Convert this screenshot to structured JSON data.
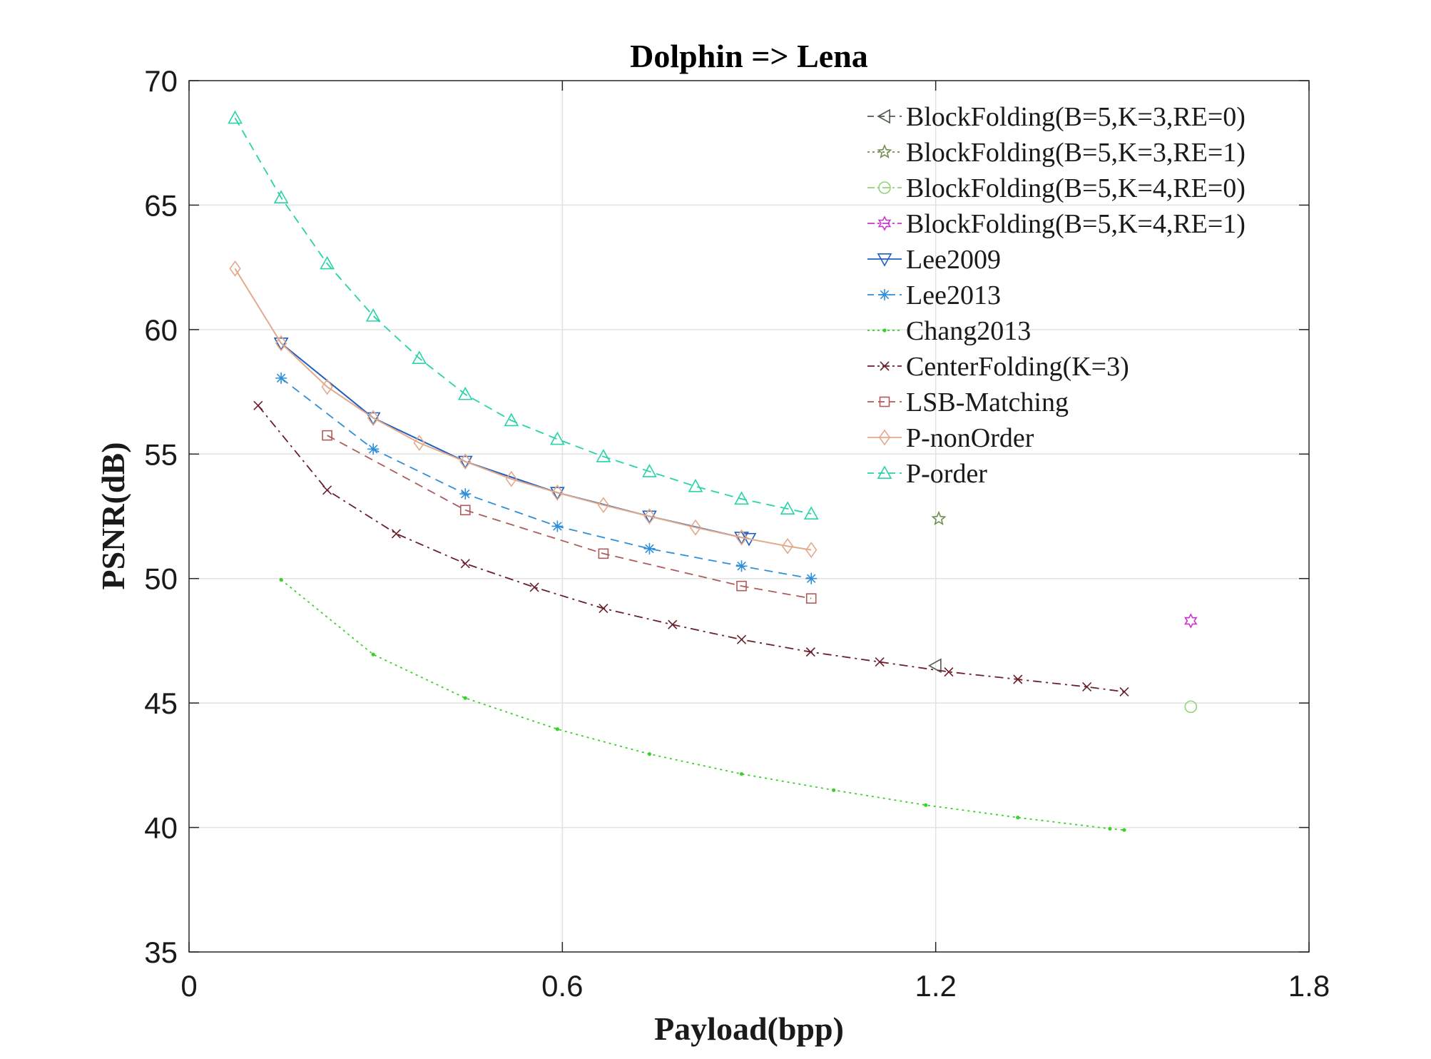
{
  "chart_data": {
    "type": "line",
    "title": "Dolphin => Lena",
    "xlabel": "Payload(bpp)",
    "ylabel": "PSNR(dB)",
    "xlim": [
      0,
      1.8
    ],
    "ylim": [
      35,
      70
    ],
    "xticks": [
      0,
      0.6,
      1.2,
      1.8
    ],
    "xtick_labels": [
      "0",
      "0.6",
      "1.2",
      "1.8"
    ],
    "yticks": [
      35,
      40,
      45,
      50,
      55,
      60,
      65,
      70
    ],
    "ytick_labels": [
      "35",
      "40",
      "45",
      "50",
      "55",
      "60",
      "65",
      "70"
    ],
    "grid": true,
    "legend_position": "top-right",
    "series": [
      {
        "name": "BlockFolding(B=5,K=3,RE=0)",
        "color": "#4d5b4d",
        "dash": "dashed",
        "marker": "triangle-left",
        "x": [
          1.2
        ],
        "y": [
          46.5
        ]
      },
      {
        "name": "BlockFolding(B=5,K=3,RE=1)",
        "color": "#6f8f4f",
        "dash": "dotted",
        "marker": "star",
        "x": [
          1.205
        ],
        "y": [
          52.4
        ]
      },
      {
        "name": "BlockFolding(B=5,K=4,RE=0)",
        "color": "#8fd47a",
        "dash": "dashdot",
        "marker": "circle",
        "x": [
          1.61
        ],
        "y": [
          44.85
        ]
      },
      {
        "name": "BlockFolding(B=5,K=4,RE=1)",
        "color": "#cc33cc",
        "dash": "dashdot",
        "marker": "hexagram",
        "x": [
          1.61
        ],
        "y": [
          48.3
        ]
      },
      {
        "name": "Lee2009",
        "color": "#1f5fbf",
        "dash": "solid",
        "marker": "triangle-down",
        "x": [
          0.148,
          0.296,
          0.444,
          0.592,
          0.74,
          0.888,
          0.9
        ],
        "y": [
          59.45,
          56.45,
          54.7,
          53.45,
          52.5,
          51.65,
          51.6
        ]
      },
      {
        "name": "Lee2013",
        "color": "#2e8fd8",
        "dash": "dashed",
        "marker": "asterisk",
        "x": [
          0.148,
          0.296,
          0.444,
          0.592,
          0.74,
          0.888,
          1.0
        ],
        "y": [
          58.05,
          55.2,
          53.4,
          52.1,
          51.2,
          50.5,
          50.0
        ]
      },
      {
        "name": "Chang2013",
        "color": "#3ccf2c",
        "dash": "dotted",
        "marker": "point",
        "x": [
          0.148,
          0.296,
          0.444,
          0.592,
          0.74,
          0.888,
          1.036,
          1.184,
          1.332,
          1.48,
          1.503
        ],
        "y": [
          49.95,
          46.95,
          45.2,
          43.95,
          42.95,
          42.15,
          41.5,
          40.9,
          40.4,
          39.95,
          39.9
        ]
      },
      {
        "name": "CenterFolding(K=3)",
        "color": "#6b1f2a",
        "dash": "dashdot",
        "marker": "x",
        "x": [
          0.111,
          0.222,
          0.333,
          0.444,
          0.555,
          0.666,
          0.777,
          0.888,
          0.999,
          1.11,
          1.221,
          1.332,
          1.443,
          1.503
        ],
        "y": [
          56.95,
          53.55,
          51.8,
          50.6,
          49.65,
          48.8,
          48.15,
          47.55,
          47.05,
          46.65,
          46.25,
          45.95,
          45.65,
          45.45
        ]
      },
      {
        "name": "LSB-Matching",
        "color": "#b05a5a",
        "dash": "dashed",
        "marker": "square",
        "x": [
          0.222,
          0.444,
          0.666,
          0.888,
          1.0
        ],
        "y": [
          55.75,
          52.75,
          51.0,
          49.7,
          49.2
        ]
      },
      {
        "name": "P-nonOrder",
        "color": "#e3a98a",
        "dash": "solid",
        "marker": "diamond",
        "x": [
          0.074,
          0.148,
          0.222,
          0.296,
          0.37,
          0.444,
          0.518,
          0.592,
          0.666,
          0.74,
          0.814,
          0.888,
          0.962,
          1.0
        ],
        "y": [
          62.45,
          59.45,
          57.7,
          56.45,
          55.45,
          54.7,
          54.0,
          53.45,
          52.95,
          52.5,
          52.05,
          51.65,
          51.3,
          51.15
        ]
      },
      {
        "name": "P-order",
        "color": "#27d3a8",
        "dash": "dashed",
        "marker": "triangle-up",
        "x": [
          0.074,
          0.148,
          0.222,
          0.296,
          0.37,
          0.444,
          0.518,
          0.592,
          0.666,
          0.74,
          0.814,
          0.888,
          0.962,
          1.0
        ],
        "y": [
          68.5,
          65.3,
          62.65,
          60.55,
          58.85,
          57.4,
          56.35,
          55.6,
          54.9,
          54.3,
          53.7,
          53.2,
          52.8,
          52.6
        ]
      }
    ]
  }
}
